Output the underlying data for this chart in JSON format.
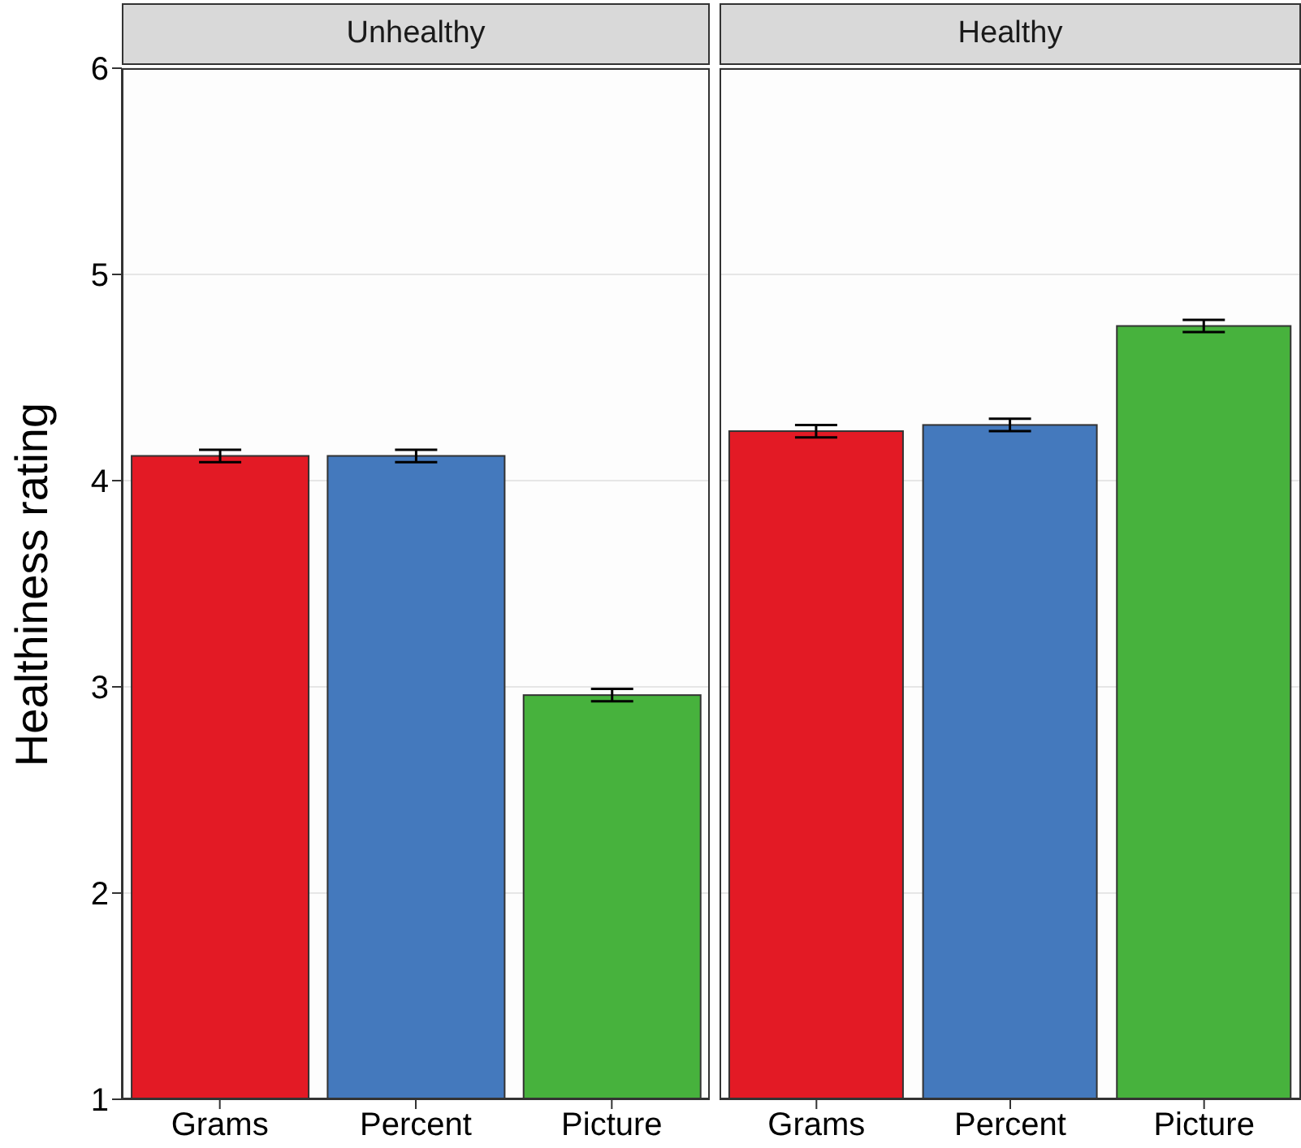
{
  "chart_data": [
    {
      "type": "bar",
      "title": "Unhealthy",
      "ylabel": "Healthiness rating",
      "categories": [
        "Grams",
        "Percent",
        "Picture"
      ],
      "values": [
        4.12,
        4.12,
        2.96
      ],
      "colors": [
        "#e31a25",
        "#4479bd",
        "#47b23d"
      ],
      "errors": [
        0.03,
        0.03,
        0.03
      ],
      "ylim": [
        1,
        6
      ],
      "yticks": [
        1,
        2,
        3,
        4,
        5,
        6
      ],
      "grid": "y"
    },
    {
      "type": "bar",
      "title": "Healthy",
      "categories": [
        "Grams",
        "Percent",
        "Picture"
      ],
      "values": [
        4.24,
        4.27,
        4.75
      ],
      "colors": [
        "#e31a25",
        "#4479bd",
        "#47b23d"
      ],
      "errors": [
        0.03,
        0.03,
        0.03
      ],
      "ylim": [
        1,
        6
      ],
      "yticks": [
        1,
        2,
        3,
        4,
        5,
        6
      ],
      "grid": "y",
      "tick_labels": "x"
    }
  ]
}
